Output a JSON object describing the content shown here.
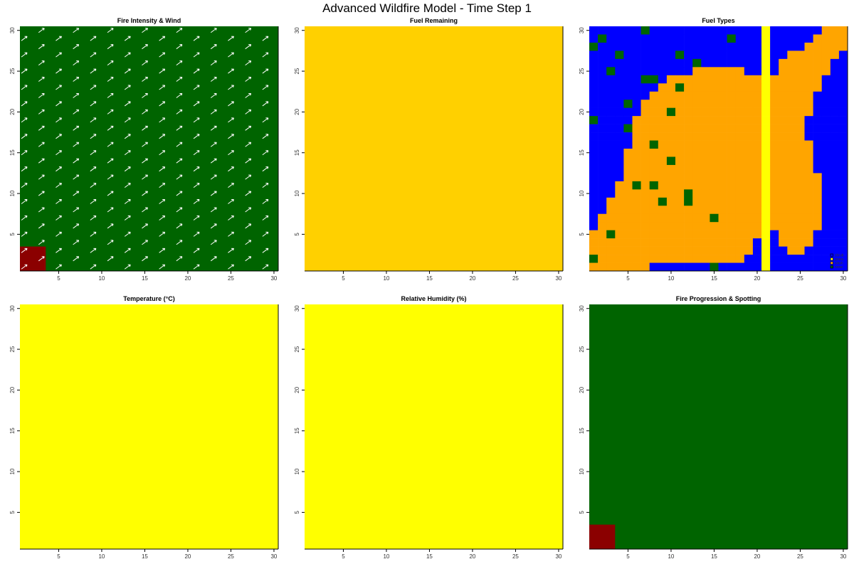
{
  "title": "Advanced Wildfire Model - Time Step 1",
  "chart_data": [
    {
      "type": "heatmap",
      "title": "Fire Intensity & Wind",
      "xlim": [
        1,
        30
      ],
      "ylim": [
        1,
        30
      ],
      "xticks": [
        5,
        10,
        15,
        20,
        25,
        30
      ],
      "yticks": [
        5,
        10,
        15,
        20,
        25,
        30
      ],
      "background_color": "#006400",
      "burning_color": "#8B0000",
      "burning_cells": {
        "x": [
          1,
          3
        ],
        "y": [
          1,
          3
        ]
      },
      "wind_arrows": {
        "direction": "northeast",
        "color": "#FFFFFF"
      }
    },
    {
      "type": "heatmap",
      "title": "Fuel Remaining",
      "xlim": [
        1,
        30
      ],
      "ylim": [
        1,
        30
      ],
      "xticks": [
        5,
        10,
        15,
        20,
        25,
        30
      ],
      "yticks": [
        5,
        10,
        15,
        20,
        25,
        30
      ],
      "uniform": true,
      "fill_color": "#FFD000"
    },
    {
      "type": "heatmap",
      "title": "Fuel Types",
      "xlim": [
        1,
        30
      ],
      "ylim": [
        1,
        30
      ],
      "xticks": [
        5,
        10,
        15,
        20,
        25,
        30
      ],
      "yticks": [
        5,
        10,
        15,
        20,
        25,
        30
      ],
      "legend": [
        {
          "code": "B",
          "label": "shrub",
          "color": "#0000FF"
        },
        {
          "code": "Y",
          "label": "grass",
          "color": "#FFFF00"
        },
        {
          "code": "O",
          "label": "slash",
          "color": "#FFA500"
        },
        {
          "code": "N",
          "label": "none",
          "color": "#006400"
        }
      ],
      "legend_position": "bottom-right",
      "grid_rows_top_to_bottom": [
        "BBBBBBNBBBBBBBBBBBBBYBBBBBBOOO",
        "BNBBBBBBBBBBBBBBNBBBYBBBBBOOOO",
        "NBBBBBBBBBBBBBBBBBBBYBBBBOOOOO",
        "BBBNBBBBBBNBBBBBBBBBYBBOOOOOOB",
        "BBBBBBBBBBBBNBBBBBBBYBOOOOOOBB",
        "BBNBBBBBBBBBOOOOOOBBYBOOOOOOBB",
        "BBBBBBNNBOOOOOOOOOOOYOOOOOOBBB",
        "BBBBBBBBOONOOOOOOOOOYOOOOOOBBB",
        "BBBBBBBOOOOOOOOOOOOOYOOOOOBBBB",
        "BBBBNBOOOOOOOOOOOOOOYOOOOOBBBB",
        "BBBBBBOOONOOOOOOOOOOYOOOOOBBBB",
        "NBBBBOOOOOOOOOOOOOOOYOOOOBBBBB",
        "BBBBNOOOOOOOOOOOOOOOYOOOOBBBBB",
        "BBBBBOOOOOOOOOOOOOOOYOOOOBBBBB",
        "BBBBBOONOOOOOOOOOOOOYOOOOOBBBB",
        "BBBBOOOOOOOOOOOOOOOOYOOOOOBBBB",
        "BBBBOOOOONOOOOOOOOOOYOOOOOBBBB",
        "BBBBOOOOOOOOOOOOOOOOYOOOOOBBBB",
        "BBBBOOOOOOOOOOOOOOOOYOOOOOOBBB",
        "BBBOONONOOOOOOOOOOOOYOOOOOOBBB",
        "BBBOOOOOOOONOOOOOOOOYOOOOOOBBB",
        "BBOOOOOONOONOOOOOOOOYOOOOOOBBB",
        "BBOOOOOOOOOOOOOOOOOOYOOOOOOBBB",
        "BOOOOOOOOOOOOONOOOOOYOOOOOOBBB",
        "BOOOOOOOOOOOOOOOOOOOYOOOOOOBBB",
        "OONOOOOOOOOOOOOOOOOOYBOOOOBBBB",
        "OOOOOOOOOOOOOOOOOOOBYBOOOOBBBB",
        "OOOOOOOOOOOOOOOOOOOBYBBOOBBBBB",
        "NOOOOOOOOOOOOOOOOOBBYBBBBBBBBB",
        "OOOOOOOBBBBBBBNBBBBBYBBBBBBBBB"
      ]
    },
    {
      "type": "heatmap",
      "title": "Temperature (°C)",
      "xlim": [
        1,
        30
      ],
      "ylim": [
        1,
        30
      ],
      "xticks": [
        5,
        10,
        15,
        20,
        25,
        30
      ],
      "yticks": [
        5,
        10,
        15,
        20,
        25,
        30
      ],
      "uniform": true,
      "fill_color": "#FFFF00"
    },
    {
      "type": "heatmap",
      "title": "Relative Humidity (%)",
      "xlim": [
        1,
        30
      ],
      "ylim": [
        1,
        30
      ],
      "xticks": [
        5,
        10,
        15,
        20,
        25,
        30
      ],
      "yticks": [
        5,
        10,
        15,
        20,
        25,
        30
      ],
      "uniform": true,
      "fill_color": "#FFFF00"
    },
    {
      "type": "heatmap",
      "title": "Fire Progression & Spotting",
      "xlim": [
        1,
        30
      ],
      "ylim": [
        1,
        30
      ],
      "xticks": [
        5,
        10,
        15,
        20,
        25,
        30
      ],
      "yticks": [
        5,
        10,
        15,
        20,
        25,
        30
      ],
      "background_color": "#006400",
      "burning_color": "#8B0000",
      "burning_cells": {
        "x": [
          1,
          3
        ],
        "y": [
          1,
          3
        ]
      }
    }
  ]
}
